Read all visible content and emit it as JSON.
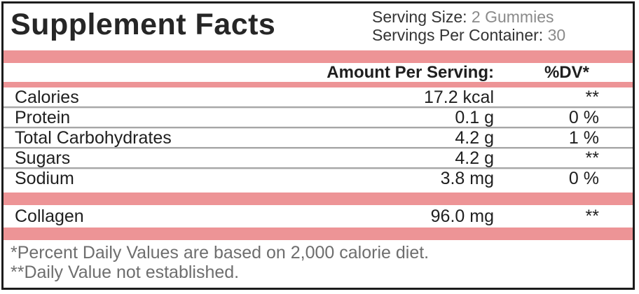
{
  "title": "Supplement Facts",
  "serving": {
    "size_label": "Serving Size:",
    "size_value": "2 Gummies",
    "per_container_label": "Servings Per Container:",
    "per_container_value": "30"
  },
  "columns": {
    "amount_header": "Amount Per Serving:",
    "dv_header": "%DV*"
  },
  "nutrients": [
    {
      "name": "Calories",
      "amount": "17.2 kcal",
      "dv": "**"
    },
    {
      "name": "Protein",
      "amount": "0.1 g",
      "dv": "0 %"
    },
    {
      "name": "Total Carbohydrates",
      "amount": "4.2 g",
      "dv": "1 %"
    },
    {
      "name": "Sugars",
      "amount": "4.2 g",
      "dv": "**"
    },
    {
      "name": "Sodium",
      "amount": "3.8 mg",
      "dv": "0 %"
    }
  ],
  "actives": [
    {
      "name": "Collagen",
      "amount": "96.0 mg",
      "dv": "**"
    }
  ],
  "footnotes": [
    "*Percent Daily Values are based on 2,000 calorie diet.",
    "**Daily Value not established."
  ],
  "colors": {
    "accent_pink": "#ED9496",
    "border_black": "#1C1C1C",
    "muted_value_gray": "#8A8A8A",
    "footnote_gray": "#6E6E6E",
    "separator_gray": "#A6A6A6"
  }
}
